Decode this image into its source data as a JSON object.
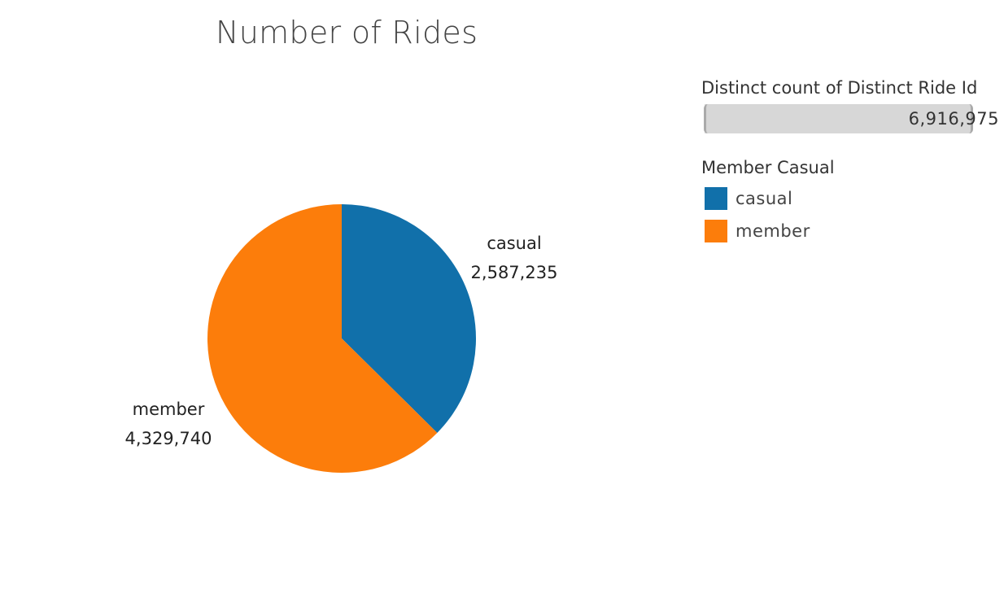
{
  "title": "Number of Rides",
  "legend": {
    "size_title": "Distinct count of Distinct Ride Id",
    "size_value": "6,916,975",
    "color_title": "Member Casual",
    "items": [
      {
        "label": "casual",
        "color": "#1170aa"
      },
      {
        "label": "member",
        "color": "#fc7d0b"
      }
    ]
  },
  "chart_data": {
    "type": "pie",
    "title": "Number of Rides",
    "slices": [
      {
        "category": "casual",
        "value": 2587235,
        "value_label": "2,587,235",
        "color": "#1170aa"
      },
      {
        "category": "member",
        "value": 4329740,
        "value_label": "4,329,740",
        "color": "#fc7d0b"
      }
    ],
    "start_angle": "12 o'clock",
    "direction": "clockwise",
    "legend_position": "right"
  }
}
